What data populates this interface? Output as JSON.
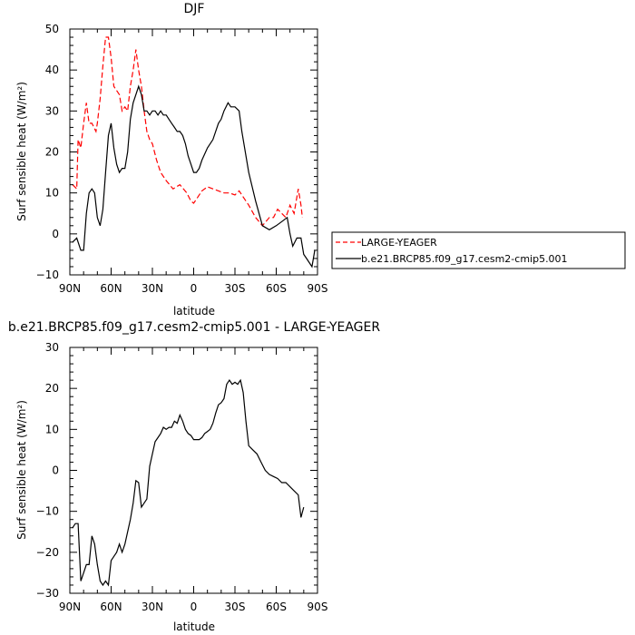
{
  "chart_data": [
    {
      "type": "line",
      "title": "DJF",
      "xlabel": "latitude",
      "ylabel": "Surf sensible heat (W/m²)",
      "xlim": [
        90,
        -90
      ],
      "ylim": [
        -10,
        50
      ],
      "x_ticks": [
        {
          "value": 90,
          "label": "90N"
        },
        {
          "value": 60,
          "label": "60N"
        },
        {
          "value": 30,
          "label": "30N"
        },
        {
          "value": 0,
          "label": "0"
        },
        {
          "value": -30,
          "label": "30S"
        },
        {
          "value": -60,
          "label": "60S"
        },
        {
          "value": -90,
          "label": "90S"
        }
      ],
      "y_ticks": [
        -10,
        0,
        10,
        20,
        30,
        40,
        50
      ],
      "legend_position": "right",
      "series": [
        {
          "name": "LARGE-YEAGER",
          "color": "#ff0000",
          "style": "dashed",
          "x": [
            88,
            85,
            84,
            82,
            80,
            78,
            76,
            74,
            71,
            70,
            68,
            66,
            64,
            62,
            60,
            58,
            56,
            54,
            52,
            50,
            48,
            46,
            44,
            42,
            40,
            38,
            36,
            34,
            32,
            30,
            27,
            24,
            20,
            15,
            10,
            5,
            2,
            0,
            -3,
            -6,
            -10,
            -14,
            -18,
            -22,
            -26,
            -30,
            -33,
            -36,
            -40,
            -45,
            -50,
            -55,
            -58,
            -61,
            -64,
            -67,
            -70,
            -73,
            -76,
            -78,
            -79
          ],
          "y": [
            12,
            11,
            23,
            21,
            27,
            32,
            27,
            27,
            25,
            27,
            33,
            41,
            48,
            48,
            43,
            36,
            35,
            34,
            30,
            31,
            30,
            36,
            40,
            45,
            40,
            36,
            30,
            25,
            23,
            22,
            18,
            15,
            13,
            11,
            12,
            10,
            8,
            7.5,
            9,
            10.5,
            11.5,
            11,
            10.5,
            10,
            10,
            9.5,
            10.5,
            9,
            7,
            4,
            2,
            4,
            4,
            6,
            5,
            4,
            7,
            5,
            11,
            7,
            4
          ]
        },
        {
          "name": "b.e21.BRCP85.f09_g17.cesm2-cmip5.001",
          "color": "#000000",
          "style": "solid",
          "x": [
            88,
            85,
            82,
            80,
            78,
            76,
            74,
            72,
            70,
            68,
            66,
            64,
            62,
            60,
            58,
            56,
            54,
            52,
            50,
            48,
            46,
            44,
            42,
            40,
            38,
            36,
            34,
            32,
            30,
            28,
            26,
            24,
            22,
            20,
            18,
            16,
            14,
            12,
            10,
            8,
            6,
            4,
            2,
            0,
            -2,
            -4,
            -6,
            -10,
            -14,
            -18,
            -20,
            -22,
            -25,
            -27,
            -30,
            -33,
            -35,
            -40,
            -45,
            -50,
            -55,
            -60,
            -64,
            -68,
            -70,
            -72,
            -75,
            -78,
            -80,
            -82,
            -86,
            -88
          ],
          "y": [
            -2,
            -1,
            -4,
            -4,
            5,
            10,
            11,
            10,
            4,
            2,
            6,
            15,
            24,
            27,
            21,
            17,
            15,
            16,
            16,
            20,
            28,
            32,
            34,
            36,
            34,
            30,
            30,
            29,
            30,
            30,
            29,
            30,
            29,
            29,
            28,
            27,
            26,
            25,
            25,
            24,
            22,
            19,
            17,
            15,
            15,
            16,
            18,
            21,
            23,
            27,
            28,
            30,
            32,
            31,
            31,
            30,
            25,
            15,
            8,
            2,
            1,
            2,
            3,
            4,
            0,
            -3,
            -1,
            -1,
            -5,
            -6,
            -8,
            -4
          ]
        }
      ]
    },
    {
      "type": "line",
      "title": "b.e21.BRCP85.f09_g17.cesm2-cmip5.001 - LARGE-YEAGER",
      "xlabel": "latitude",
      "ylabel": "Surf sensible heat (W/m²)",
      "xlim": [
        90,
        -90
      ],
      "ylim": [
        -30,
        30
      ],
      "x_ticks": [
        {
          "value": 90,
          "label": "90N"
        },
        {
          "value": 60,
          "label": "60N"
        },
        {
          "value": 30,
          "label": "30N"
        },
        {
          "value": 0,
          "label": "0"
        },
        {
          "value": -30,
          "label": "30S"
        },
        {
          "value": -60,
          "label": "60S"
        },
        {
          "value": -90,
          "label": "90S"
        }
      ],
      "y_ticks": [
        -30,
        -20,
        -10,
        0,
        10,
        20,
        30
      ],
      "series": [
        {
          "color": "#000000",
          "style": "solid",
          "x": [
            88,
            86,
            84,
            82,
            80,
            78,
            76,
            74,
            72,
            70,
            68,
            66,
            64,
            62,
            60,
            58,
            56,
            54,
            52,
            50,
            48,
            46,
            44,
            42,
            40,
            38,
            36,
            34,
            32,
            30,
            28,
            26,
            24,
            22,
            20,
            18,
            16,
            14,
            12,
            10,
            8,
            6,
            4,
            2,
            0,
            -2,
            -4,
            -6,
            -8,
            -10,
            -12,
            -14,
            -16,
            -18,
            -20,
            -22,
            -24,
            -26,
            -28,
            -30,
            -32,
            -34,
            -36,
            -38,
            -40,
            -43,
            -46,
            -49,
            -52,
            -55,
            -58,
            -61,
            -64,
            -67,
            -70,
            -73,
            -76,
            -78,
            -80
          ],
          "y": [
            -14,
            -13,
            -13,
            -27,
            -25,
            -23,
            -23,
            -16,
            -18,
            -23,
            -27,
            -28,
            -27,
            -28,
            -22,
            -21,
            -20,
            -18,
            -20,
            -18,
            -15,
            -12,
            -8,
            -2.5,
            -3,
            -9,
            -8,
            -7,
            1,
            4,
            7,
            8,
            9,
            10.5,
            10,
            10.5,
            10.5,
            12,
            11.5,
            13.5,
            12,
            10,
            9,
            8.5,
            7.5,
            7.5,
            7.5,
            8,
            9,
            9.5,
            10,
            11.5,
            14,
            16,
            16.5,
            17.5,
            21,
            22,
            21,
            21.5,
            21,
            22,
            19,
            12,
            6,
            5,
            4,
            2,
            0,
            -1,
            -1.5,
            -2,
            -3,
            -3,
            -4,
            -5,
            -6,
            -11.5,
            -9
          ]
        }
      ]
    }
  ],
  "legend": {
    "entries": [
      {
        "label": "LARGE-YEAGER",
        "color": "#ff0000",
        "style": "dashed"
      },
      {
        "label": "b.e21.BRCP85.f09_g17.cesm2-cmip5.001",
        "color": "#000000",
        "style": "solid"
      }
    ]
  }
}
